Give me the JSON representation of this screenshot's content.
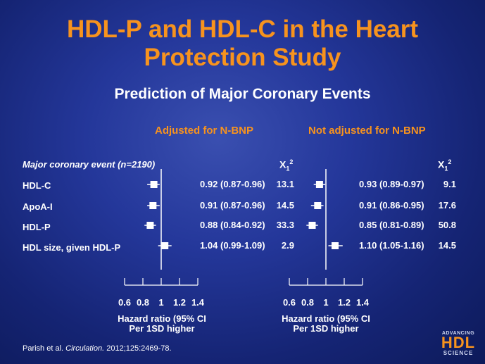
{
  "title_line1": "HDL-P and HDL-C in the Heart",
  "title_line2": "Protection Study",
  "subtitle": "Prediction of Major Coronary Events",
  "row_header": "Major coronary event (n=2190)",
  "rows": [
    "HDL-C",
    "ApoA-I",
    "HDL-P",
    "HDL size, given HDL-P"
  ],
  "chi_label": {
    "base": "X",
    "sub": "1",
    "sup": "2"
  },
  "axis_label_line1": "Hazard ratio (95% CI",
  "axis_label_line2": "Per 1SD higher",
  "citation_prefix": "Parish et al. ",
  "citation_journal": "Circulation.",
  "citation_suffix": " 2012;125:2469-78.",
  "logo": {
    "line1": "ADVANCING",
    "line2": "HDL",
    "line3": "SCIENCE"
  },
  "colors": {
    "accent": "#f7931e",
    "text": "#ffffff",
    "background": "#1e2f8a"
  },
  "chart_data": [
    {
      "type": "forest",
      "title": "Adjusted for N-BNP",
      "xlim": [
        0.6,
        1.4
      ],
      "ticks": [
        0.6,
        0.8,
        1,
        1.2,
        1.4
      ],
      "tick_labels": [
        "0.6",
        "0.8",
        "1",
        "1.2",
        "1.4"
      ],
      "reference_line": 1,
      "rows": [
        {
          "label": "HDL-C",
          "hr": 0.92,
          "lo": 0.87,
          "hi": 0.96,
          "hr_text": "0.92",
          "ci_text": "(0.87-0.96)",
          "chi2": "13.1"
        },
        {
          "label": "ApoA-I",
          "hr": 0.91,
          "lo": 0.87,
          "hi": 0.96,
          "hr_text": "0.91",
          "ci_text": "(0.87-0.96)",
          "chi2": "14.5"
        },
        {
          "label": "HDL-P",
          "hr": 0.88,
          "lo": 0.84,
          "hi": 0.92,
          "hr_text": "0.88",
          "ci_text": "(0.84-0.92)",
          "chi2": "33.3"
        },
        {
          "label": "HDL size, given HDL-P",
          "hr": 1.04,
          "lo": 0.99,
          "hi": 1.09,
          "hr_text": "1.04",
          "ci_text": "(0.99-1.09)",
          "chi2": "2.9"
        }
      ]
    },
    {
      "type": "forest",
      "title": "Not adjusted for N-BNP",
      "xlim": [
        0.6,
        1.4
      ],
      "ticks": [
        0.6,
        0.8,
        1,
        1.2,
        1.4
      ],
      "tick_labels": [
        "0.6",
        "0.8",
        "1",
        "1.2",
        "1.4"
      ],
      "reference_line": 1,
      "rows": [
        {
          "label": "HDL-C",
          "hr": 0.93,
          "lo": 0.89,
          "hi": 0.97,
          "hr_text": "0.93",
          "ci_text": "(0.89-0.97)",
          "chi2": "9.1"
        },
        {
          "label": "ApoA-I",
          "hr": 0.91,
          "lo": 0.86,
          "hi": 0.95,
          "hr_text": "0.91",
          "ci_text": "(0.86-0.95)",
          "chi2": "17.6"
        },
        {
          "label": "HDL-P",
          "hr": 0.85,
          "lo": 0.81,
          "hi": 0.89,
          "hr_text": "0.85",
          "ci_text": "(0.81-0.89)",
          "chi2": "50.8"
        },
        {
          "label": "HDL size, given HDL-P",
          "hr": 1.1,
          "lo": 1.05,
          "hi": 1.16,
          "hr_text": "1.10",
          "ci_text": "(1.05-1.16)",
          "chi2": "14.5"
        }
      ]
    }
  ]
}
